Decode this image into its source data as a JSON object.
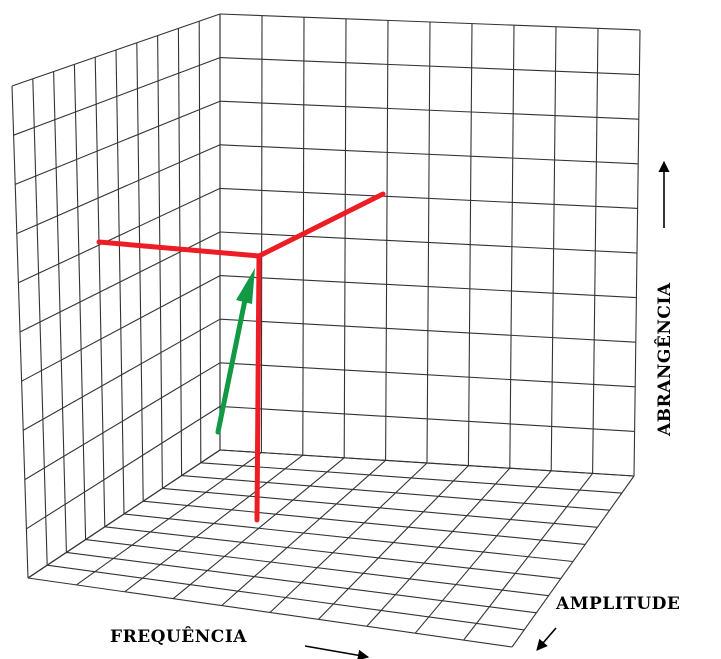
{
  "axes": {
    "frequency_label": "FREQUÊNCIA",
    "amplitude_label": "AMPLITUDE",
    "coverage_label": "ABRANGÊNCIA"
  },
  "grid": {
    "back_wall_columns": 10,
    "back_wall_rows": 10,
    "left_wall_columns": 10,
    "left_wall_rows": 10,
    "floor_columns": 10,
    "floor_rows": 10,
    "line_color": "#333333"
  },
  "colors": {
    "red_axes": "#ee1c25",
    "green_arrow": "#119943",
    "label_arrows": "#000000"
  }
}
